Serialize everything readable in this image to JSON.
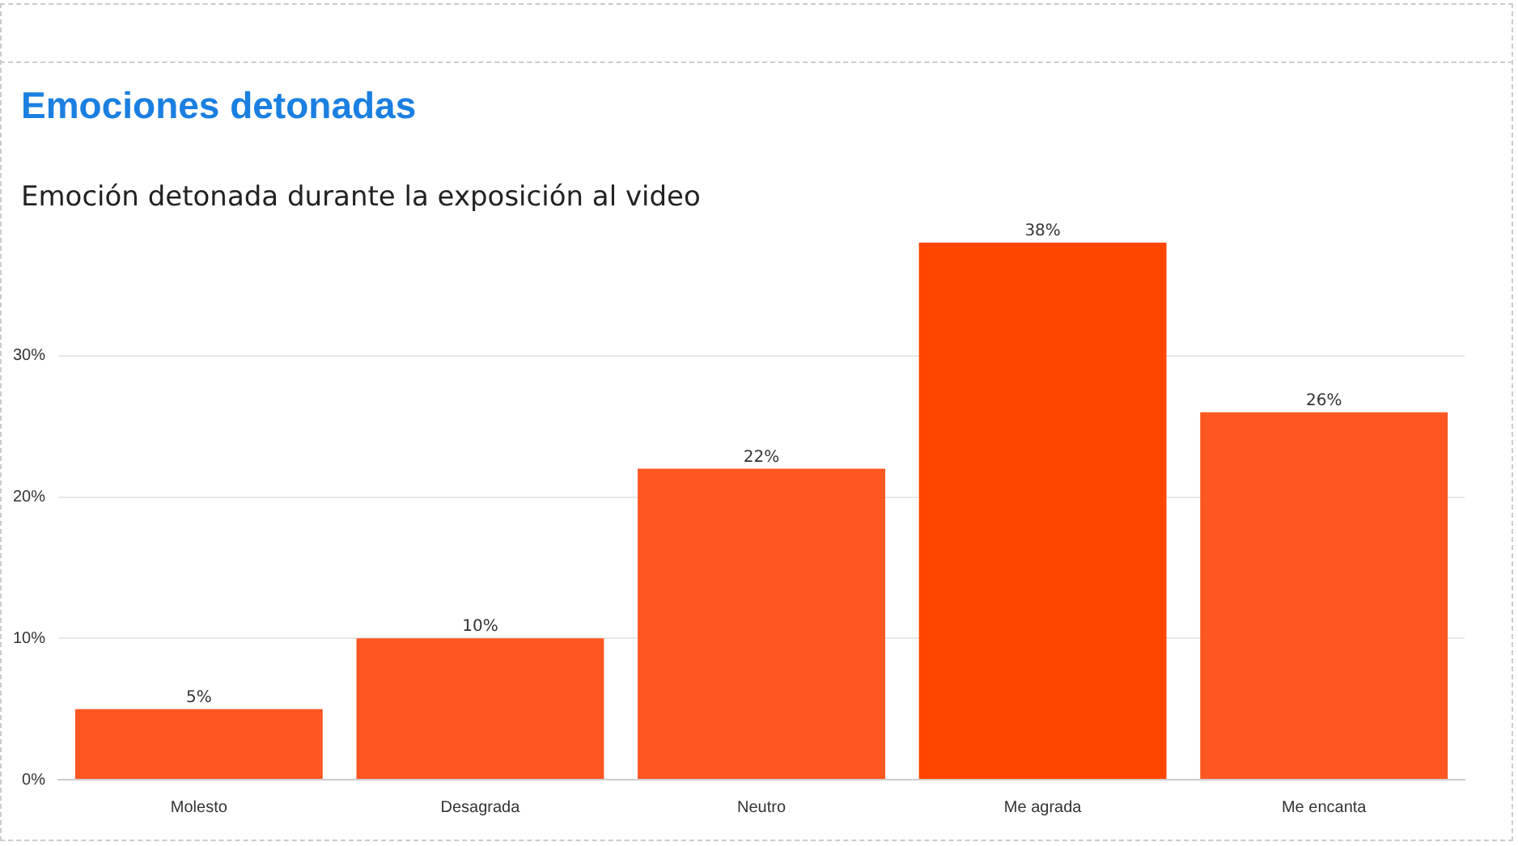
{
  "chart_data": {
    "type": "bar",
    "title": "Emociones detonadas",
    "subtitle": "Emoción detonada durante la exposición al video",
    "categories": [
      "Molesto",
      "Desagrada",
      "Neutro",
      "Me agrada",
      "Me encanta"
    ],
    "values": [
      5,
      10,
      22,
      38,
      26
    ],
    "value_labels": [
      "5%",
      "10%",
      "22%",
      "38%",
      "26%"
    ],
    "colors": [
      "#ff5722",
      "#ff5722",
      "#ff5722",
      "#ff4500",
      "#ff5722"
    ],
    "ylim": [
      0,
      38
    ],
    "yticks": [
      {
        "value": 0,
        "label": "0%"
      },
      {
        "value": 10,
        "label": "10%"
      },
      {
        "value": 20,
        "label": "20%"
      },
      {
        "value": 30,
        "label": "30%"
      }
    ],
    "grid": "y",
    "legend": false
  }
}
